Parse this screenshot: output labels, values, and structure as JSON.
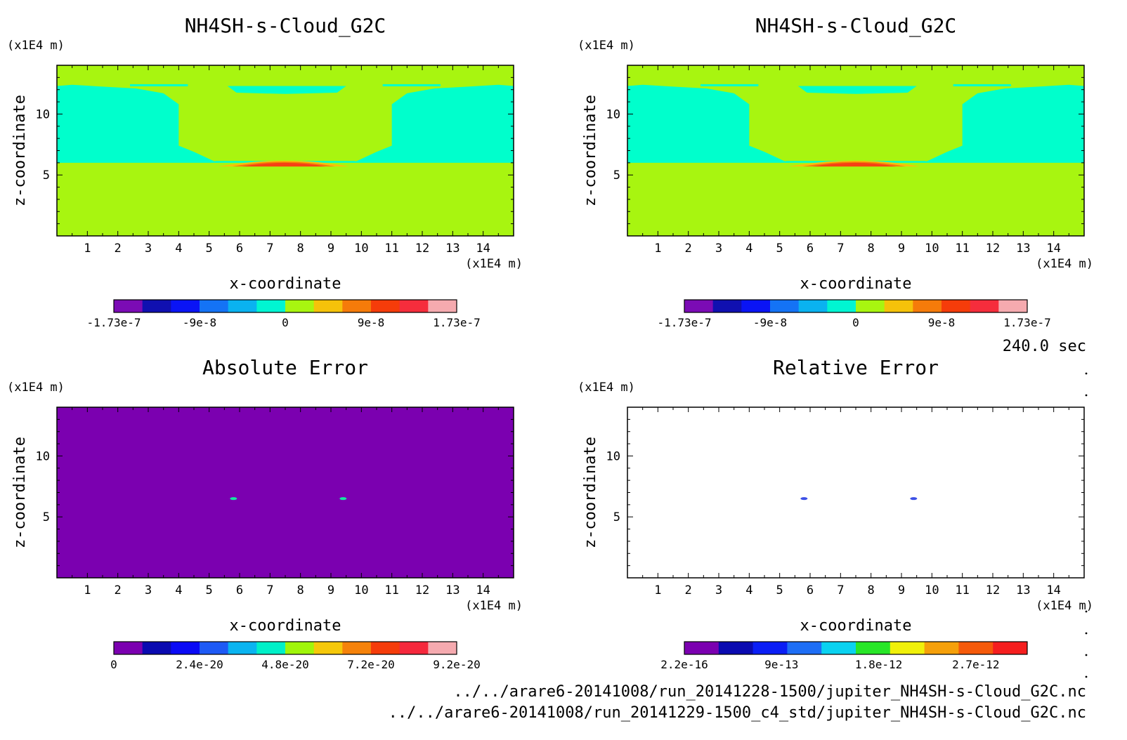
{
  "time_label": "240.0 sec",
  "footer": {
    "file1": "../../arare6-20141008/run_20141228-1500/jupiter_NH4SH-s-Cloud_G2C.nc",
    "file2": "../../arare6-20141008/run_20141229-1500_c4_std/jupiter_NH4SH-s-Cloud_G2C.nc"
  },
  "chart_data": [
    {
      "id": "p1",
      "type": "heatmap",
      "title": "NH4SH-s-Cloud_G2C",
      "xlabel": "x-coordinate",
      "ylabel": "z-coordinate",
      "xunit": "(x1E4 m)",
      "zunit": "(x1E4 m)",
      "xlim": [
        0,
        15
      ],
      "ylim": [
        0,
        14
      ],
      "xticks": [
        1,
        2,
        3,
        4,
        5,
        6,
        7,
        8,
        9,
        10,
        11,
        12,
        13,
        14
      ],
      "yticks": [
        5,
        10
      ],
      "colorbar": {
        "ticks": [
          "-1.73e-7",
          "-9e-8",
          "0",
          "9e-8",
          "1.73e-7"
        ],
        "colors": [
          "#7b0bb5",
          "#1010b0",
          "#0a14f5",
          "#1473f5",
          "#0ab2f0",
          "#00f5d2",
          "#a8f510",
          "#f5c20a",
          "#f57b0a",
          "#f53c0a",
          "#f52d3c",
          "#f5aaaf"
        ]
      },
      "field": {
        "background": "#a8f510",
        "cloud_color": "#00ffcc",
        "band_z": [
          6.0,
          12.3
        ],
        "clear_gap_x": [
          4.0,
          11.0
        ],
        "max_color": "#f54014",
        "max_region": {
          "x": [
            5.3,
            9.6
          ],
          "z": [
            5.7,
            6.3
          ],
          "center_x": 7.5
        }
      }
    },
    {
      "id": "p2",
      "type": "heatmap",
      "title": "NH4SH-s-Cloud_G2C",
      "xlabel": "x-coordinate",
      "ylabel": "z-coordinate",
      "xunit": "(x1E4 m)",
      "zunit": "(x1E4 m)",
      "xlim": [
        0,
        15
      ],
      "ylim": [
        0,
        14
      ],
      "xticks": [
        1,
        2,
        3,
        4,
        5,
        6,
        7,
        8,
        9,
        10,
        11,
        12,
        13,
        14
      ],
      "yticks": [
        5,
        10
      ],
      "colorbar": {
        "ticks": [
          "-1.73e-7",
          "-9e-8",
          "0",
          "9e-8",
          "1.73e-7"
        ],
        "colors": [
          "#7b0bb5",
          "#1010b0",
          "#0a14f5",
          "#1473f5",
          "#0ab2f0",
          "#00f5d2",
          "#a8f510",
          "#f5c20a",
          "#f57b0a",
          "#f53c0a",
          "#f52d3c",
          "#f5aaaf"
        ]
      },
      "field": {
        "background": "#a8f510",
        "cloud_color": "#00ffcc",
        "band_z": [
          6.0,
          12.3
        ],
        "clear_gap_x": [
          4.0,
          11.0
        ],
        "max_color": "#f54014",
        "max_region": {
          "x": [
            5.3,
            9.6
          ],
          "z": [
            5.7,
            6.3
          ],
          "center_x": 7.5
        }
      }
    },
    {
      "id": "p3",
      "type": "heatmap",
      "title": "Absolute Error",
      "xlabel": "x-coordinate",
      "ylabel": "z-coordinate",
      "xunit": "(x1E4 m)",
      "zunit": "(x1E4 m)",
      "xlim": [
        0,
        15
      ],
      "ylim": [
        0,
        14
      ],
      "xticks": [
        1,
        2,
        3,
        4,
        5,
        6,
        7,
        8,
        9,
        10,
        11,
        12,
        13,
        14
      ],
      "yticks": [
        5,
        10
      ],
      "colorbar": {
        "ticks": [
          "0",
          "2.4e-20",
          "4.8e-20",
          "7.2e-20",
          "9.2e-20"
        ],
        "colors": [
          "#7b00b0",
          "#0a0ab0",
          "#0a0af5",
          "#1e5af5",
          "#0ab4f0",
          "#00f0c8",
          "#a0f50a",
          "#f5c80a",
          "#f5820a",
          "#f53c0a",
          "#f5283c",
          "#f5aaaf"
        ]
      },
      "field": {
        "background": "#7b00b0",
        "spots": [
          {
            "x": 5.8,
            "z": 6.5,
            "color": "#14e6a0"
          },
          {
            "x": 9.4,
            "z": 6.5,
            "color": "#14e6a0"
          }
        ]
      }
    },
    {
      "id": "p4",
      "type": "heatmap",
      "title": "Relative Error",
      "xlabel": "x-coordinate",
      "ylabel": "z-coordinate",
      "xunit": "(x1E4 m)",
      "zunit": "(x1E4 m)",
      "xlim": [
        0,
        15
      ],
      "ylim": [
        0,
        14
      ],
      "xticks": [
        1,
        2,
        3,
        4,
        5,
        6,
        7,
        8,
        9,
        10,
        11,
        12,
        13,
        14
      ],
      "yticks": [
        5,
        10
      ],
      "colorbar": {
        "ticks": [
          "2.2e-16",
          "9e-13",
          "1.8e-12",
          "2.7e-12"
        ],
        "colors": [
          "#7b00b0",
          "#0a0ab0",
          "#0a1ef5",
          "#1e6ef5",
          "#0ad2f0",
          "#28e628",
          "#f0f00a",
          "#f5a00a",
          "#f55a0a",
          "#f51e1e"
        ]
      },
      "field": {
        "background": "#ffffff",
        "spots": [
          {
            "x": 5.8,
            "z": 6.5,
            "color": "#3c50e6"
          },
          {
            "x": 9.4,
            "z": 6.5,
            "color": "#3c50e6"
          }
        ]
      }
    }
  ]
}
